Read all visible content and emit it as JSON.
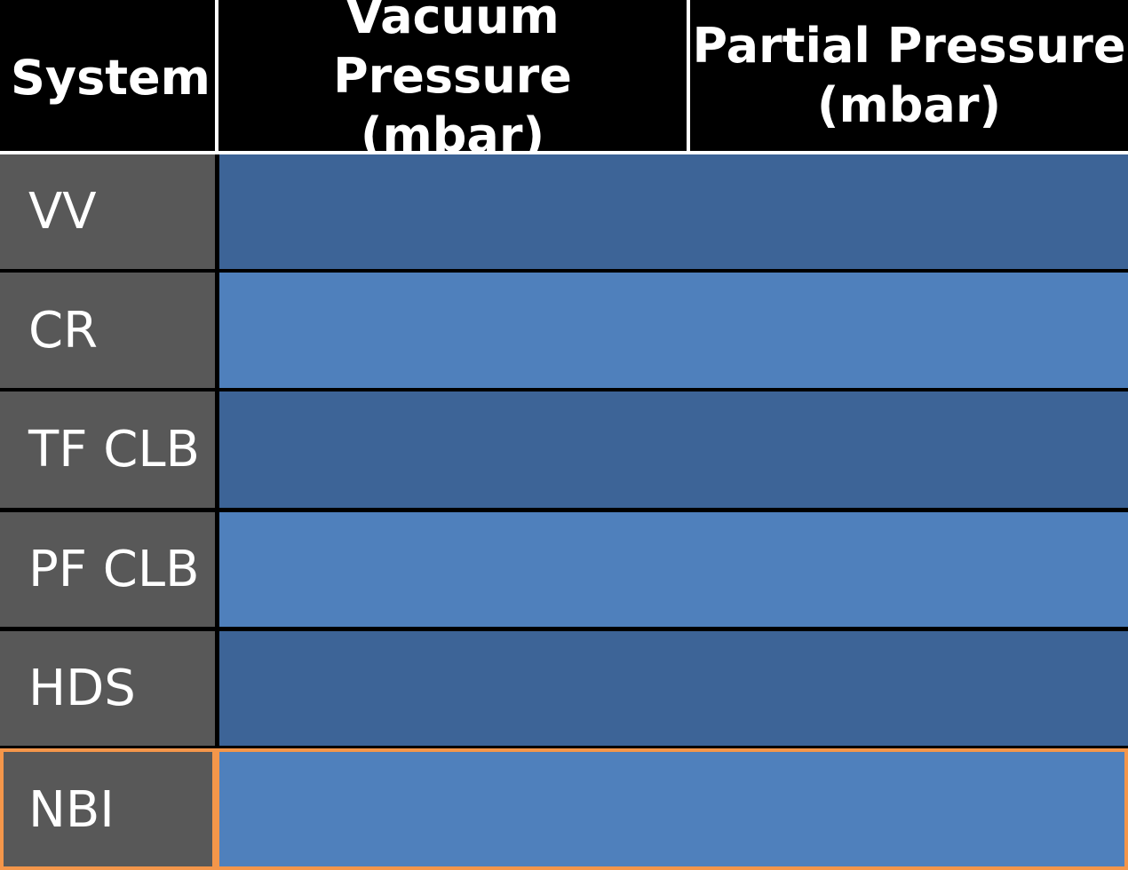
{
  "header": {
    "system": "System",
    "vacuum_line1": "Vacuum Pressure",
    "vacuum_line2": "(mbar)",
    "partial_line1": "Partial Pressure",
    "partial_line2": "(mbar)"
  },
  "rows": [
    {
      "system": "VV",
      "vacuum_pressure": "",
      "partial_pressure": ""
    },
    {
      "system": "CR",
      "vacuum_pressure": "",
      "partial_pressure": ""
    },
    {
      "system": "TF CLB",
      "vacuum_pressure": "",
      "partial_pressure": ""
    },
    {
      "system": "PF CLB",
      "vacuum_pressure": "",
      "partial_pressure": ""
    },
    {
      "system": "HDS",
      "vacuum_pressure": "",
      "partial_pressure": ""
    },
    {
      "system": "NBI",
      "vacuum_pressure": "",
      "partial_pressure": ""
    }
  ],
  "highlighted_row": "NBI",
  "colors": {
    "header_bg": "#000000",
    "label_bg": "#585858",
    "row_dark": "#3d6497",
    "row_light": "#4f80bc",
    "highlight_border": "#f4964a"
  }
}
